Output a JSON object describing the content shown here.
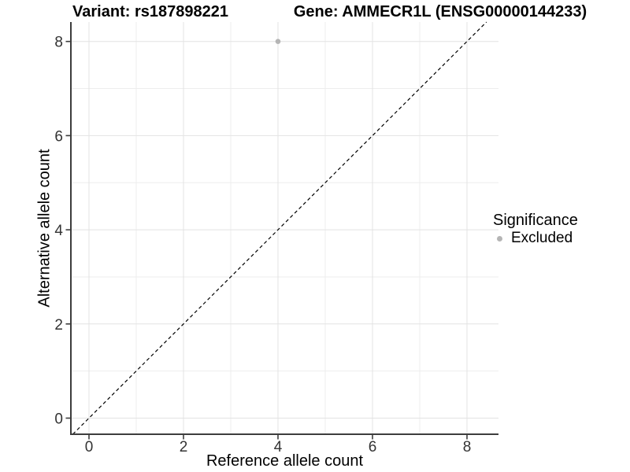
{
  "chart_data": {
    "type": "scatter",
    "titles": {
      "left": "Variant: rs187898221",
      "right": "Gene: AMMECR1L (ENSG00000144233)"
    },
    "xlabel": "Reference allele count",
    "ylabel": "Alternative allele count",
    "x_ticks": [
      0,
      2,
      4,
      6,
      8
    ],
    "y_ticks": [
      0,
      2,
      4,
      6,
      8
    ],
    "x_minor_ticks": [
      1,
      3,
      5,
      7
    ],
    "y_minor_ticks": [
      1,
      3,
      5,
      7
    ],
    "xlim": [
      -0.38,
      8.67
    ],
    "ylim": [
      -0.34,
      8.41
    ],
    "grid": "major+minor",
    "legend": {
      "title": "Significance",
      "position": "right",
      "entries": [
        {
          "label": "Excluded",
          "color": "#b5b5b5"
        }
      ]
    },
    "series": [
      {
        "name": "Excluded",
        "color": "#b5b5b5",
        "points": [
          {
            "x": 4,
            "y": 8
          }
        ]
      }
    ],
    "reference_line": {
      "slope": 1,
      "intercept": 0,
      "style": "dashed",
      "color": "#000000"
    }
  },
  "colors": {
    "background": "#ffffff",
    "grid_major": "#e3e3e3",
    "grid_minor": "#ededed",
    "axis_line": "#3d3d3d",
    "tick_mark": "#3d3d3d",
    "tick_label": "#333333",
    "point": "#b5b5b5"
  }
}
